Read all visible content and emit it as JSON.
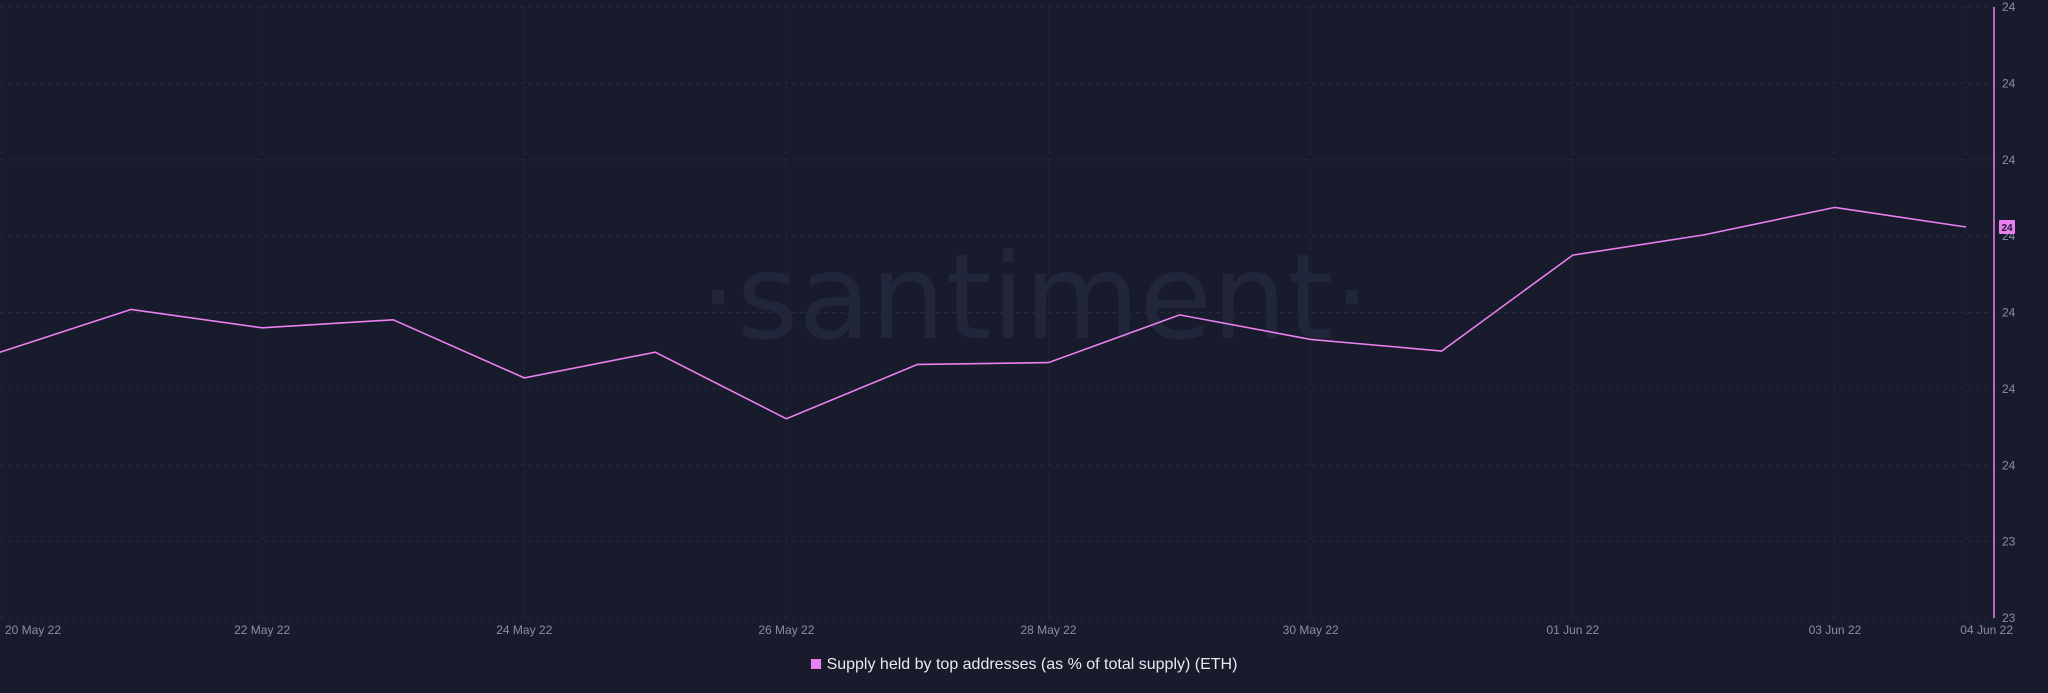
{
  "chart_data": {
    "type": "line",
    "watermark": "·santiment·",
    "x": [
      "20 May 22",
      "21 May 22",
      "22 May 22",
      "23 May 22",
      "24 May 22",
      "25 May 22",
      "26 May 22",
      "27 May 22",
      "28 May 22",
      "29 May 22",
      "30 May 22",
      "31 May 22",
      "01 Jun 22",
      "02 Jun 22",
      "03 Jun 22",
      "04 Jun 22"
    ],
    "x_tick_labels": [
      "20 May 22",
      "22 May 22",
      "24 May 22",
      "26 May 22",
      "28 May 22",
      "30 May 22",
      "01 Jun 22",
      "03 Jun 22",
      "04 Jun 22"
    ],
    "x_tick_positions": [
      0,
      2,
      4,
      6,
      8,
      10,
      12,
      14,
      15
    ],
    "y_tick_labels": [
      "24",
      "24",
      "24",
      "24",
      "24",
      "24",
      "24",
      "23",
      "23"
    ],
    "ylim": [
      23.0,
      24.0
    ],
    "series": [
      {
        "name": "Supply held by top addresses (as % of total supply) (ETH)",
        "color": "#ea80f0",
        "values": [
          23.435,
          23.505,
          23.475,
          23.488,
          23.393,
          23.435,
          23.326,
          23.415,
          23.418,
          23.496,
          23.456,
          23.437,
          23.594,
          23.627,
          23.672,
          23.64
        ]
      }
    ],
    "last_value_label": "24",
    "grid": true,
    "legend_position": "bottom-center"
  }
}
